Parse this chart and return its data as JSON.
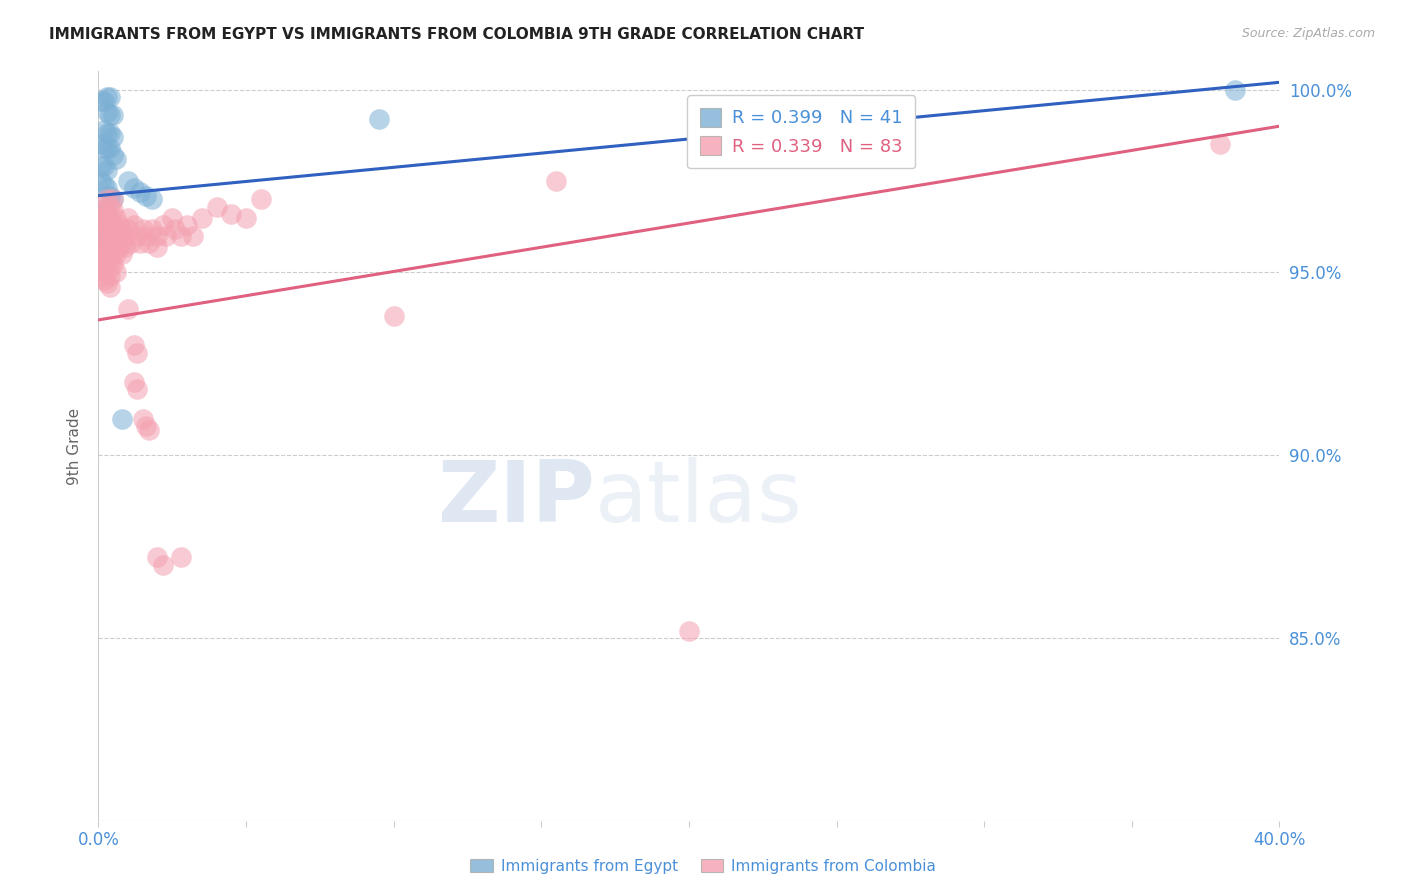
{
  "title": "IMMIGRANTS FROM EGYPT VS IMMIGRANTS FROM COLOMBIA 9TH GRADE CORRELATION CHART",
  "source": "Source: ZipAtlas.com",
  "ylabel": "9th Grade",
  "x_min": 0.0,
  "x_max": 0.4,
  "y_min": 0.8,
  "y_max": 1.005,
  "x_ticks": [
    0.0,
    0.05,
    0.1,
    0.15,
    0.2,
    0.25,
    0.3,
    0.35,
    0.4
  ],
  "x_tick_labels": [
    "0.0%",
    "",
    "",
    "",
    "",
    "",
    "",
    "",
    "40.0%"
  ],
  "y_ticks": [
    0.85,
    0.9,
    0.95,
    1.0
  ],
  "y_tick_labels": [
    "85.0%",
    "90.0%",
    "95.0%",
    "100.0%"
  ],
  "egypt_color": "#7bafd4",
  "colombia_color": "#f4a0b0",
  "egypt_line_color": "#3060c0",
  "colombia_line_color": "#e06080",
  "background_color": "#ffffff",
  "grid_color": "#cccccc",
  "tick_label_color": "#4a90d9",
  "watermark_zip": "ZIP",
  "watermark_atlas": "atlas",
  "egypt_scatter": [
    [
      0.001,
      0.997
    ],
    [
      0.002,
      0.997
    ],
    [
      0.003,
      0.998
    ],
    [
      0.004,
      0.998
    ],
    [
      0.003,
      0.994
    ],
    [
      0.004,
      0.993
    ],
    [
      0.005,
      0.993
    ],
    [
      0.002,
      0.989
    ],
    [
      0.003,
      0.988
    ],
    [
      0.004,
      0.988
    ],
    [
      0.005,
      0.987
    ],
    [
      0.001,
      0.985
    ],
    [
      0.002,
      0.984
    ],
    [
      0.003,
      0.984
    ],
    [
      0.004,
      0.984
    ],
    [
      0.005,
      0.982
    ],
    [
      0.006,
      0.981
    ],
    [
      0.001,
      0.979
    ],
    [
      0.002,
      0.979
    ],
    [
      0.003,
      0.978
    ],
    [
      0.001,
      0.975
    ],
    [
      0.002,
      0.974
    ],
    [
      0.003,
      0.973
    ],
    [
      0.004,
      0.971
    ],
    [
      0.005,
      0.97
    ],
    [
      0.001,
      0.967
    ],
    [
      0.002,
      0.966
    ],
    [
      0.003,
      0.966
    ],
    [
      0.004,
      0.963
    ],
    [
      0.005,
      0.962
    ],
    [
      0.001,
      0.96
    ],
    [
      0.002,
      0.959
    ],
    [
      0.01,
      0.975
    ],
    [
      0.012,
      0.973
    ],
    [
      0.014,
      0.972
    ],
    [
      0.016,
      0.971
    ],
    [
      0.018,
      0.97
    ],
    [
      0.008,
      0.91
    ],
    [
      0.095,
      0.992
    ],
    [
      0.385,
      1.0
    ]
  ],
  "colombia_scatter": [
    [
      0.001,
      0.968
    ],
    [
      0.001,
      0.965
    ],
    [
      0.001,
      0.963
    ],
    [
      0.002,
      0.967
    ],
    [
      0.002,
      0.964
    ],
    [
      0.002,
      0.96
    ],
    [
      0.003,
      0.97
    ],
    [
      0.003,
      0.966
    ],
    [
      0.003,
      0.963
    ],
    [
      0.003,
      0.96
    ],
    [
      0.004,
      0.968
    ],
    [
      0.004,
      0.965
    ],
    [
      0.004,
      0.962
    ],
    [
      0.004,
      0.959
    ],
    [
      0.005,
      0.97
    ],
    [
      0.005,
      0.967
    ],
    [
      0.005,
      0.963
    ],
    [
      0.005,
      0.96
    ],
    [
      0.001,
      0.958
    ],
    [
      0.001,
      0.955
    ],
    [
      0.001,
      0.952
    ],
    [
      0.001,
      0.949
    ],
    [
      0.002,
      0.957
    ],
    [
      0.002,
      0.954
    ],
    [
      0.002,
      0.951
    ],
    [
      0.002,
      0.948
    ],
    [
      0.003,
      0.956
    ],
    [
      0.003,
      0.953
    ],
    [
      0.003,
      0.95
    ],
    [
      0.003,
      0.947
    ],
    [
      0.004,
      0.955
    ],
    [
      0.004,
      0.952
    ],
    [
      0.004,
      0.949
    ],
    [
      0.004,
      0.946
    ],
    [
      0.005,
      0.958
    ],
    [
      0.005,
      0.955
    ],
    [
      0.005,
      0.952
    ],
    [
      0.006,
      0.965
    ],
    [
      0.006,
      0.96
    ],
    [
      0.006,
      0.955
    ],
    [
      0.006,
      0.95
    ],
    [
      0.007,
      0.963
    ],
    [
      0.007,
      0.96
    ],
    [
      0.007,
      0.957
    ],
    [
      0.008,
      0.962
    ],
    [
      0.008,
      0.958
    ],
    [
      0.008,
      0.955
    ],
    [
      0.009,
      0.96
    ],
    [
      0.009,
      0.957
    ],
    [
      0.01,
      0.965
    ],
    [
      0.01,
      0.962
    ],
    [
      0.011,
      0.958
    ],
    [
      0.012,
      0.963
    ],
    [
      0.013,
      0.96
    ],
    [
      0.014,
      0.958
    ],
    [
      0.015,
      0.962
    ],
    [
      0.016,
      0.96
    ],
    [
      0.017,
      0.958
    ],
    [
      0.018,
      0.962
    ],
    [
      0.02,
      0.96
    ],
    [
      0.02,
      0.957
    ],
    [
      0.022,
      0.963
    ],
    [
      0.023,
      0.96
    ],
    [
      0.025,
      0.965
    ],
    [
      0.026,
      0.962
    ],
    [
      0.028,
      0.96
    ],
    [
      0.03,
      0.963
    ],
    [
      0.032,
      0.96
    ],
    [
      0.035,
      0.965
    ],
    [
      0.04,
      0.968
    ],
    [
      0.045,
      0.966
    ],
    [
      0.05,
      0.965
    ],
    [
      0.055,
      0.97
    ],
    [
      0.01,
      0.94
    ],
    [
      0.012,
      0.93
    ],
    [
      0.013,
      0.928
    ],
    [
      0.012,
      0.92
    ],
    [
      0.013,
      0.918
    ],
    [
      0.015,
      0.91
    ],
    [
      0.016,
      0.908
    ],
    [
      0.017,
      0.907
    ],
    [
      0.02,
      0.872
    ],
    [
      0.022,
      0.87
    ],
    [
      0.028,
      0.872
    ],
    [
      0.1,
      0.938
    ],
    [
      0.155,
      0.975
    ],
    [
      0.2,
      0.852
    ],
    [
      0.38,
      0.985
    ]
  ],
  "egypt_trend": [
    0.0,
    0.971,
    0.4,
    1.002
  ],
  "colombia_trend": [
    0.0,
    0.937,
    0.4,
    0.99
  ]
}
